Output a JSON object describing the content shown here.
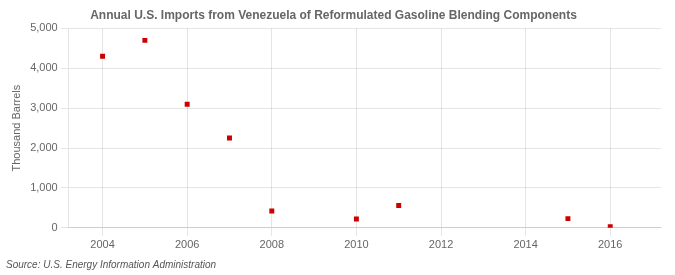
{
  "chart_data": {
    "type": "scatter",
    "title": "Annual U.S. Imports from Venezuela of Reformulated Gasoline Blending Components",
    "ylabel": "Thousand Barrels",
    "annotations": [
      "Source: U.S. Energy Information Administration"
    ],
    "x": [
      2004,
      2005,
      2006,
      2007,
      2008,
      2010,
      2011,
      2015,
      2016
    ],
    "values": [
      4300,
      4700,
      3100,
      2250,
      420,
      220,
      560,
      230,
      30
    ],
    "color": "#cc0000",
    "marker": "square",
    "xlim": [
      2003.2,
      2017.2
    ],
    "xticks": [
      2004,
      2006,
      2008,
      2010,
      2012,
      2014,
      2016
    ],
    "ylim": [
      0,
      5000
    ],
    "yticks": [
      0,
      {
        "value": 1000,
        "label": "1,000"
      },
      {
        "value": 2000,
        "label": "2,000"
      },
      {
        "value": 3000,
        "label": "3,000"
      },
      {
        "value": 4000,
        "label": "4,000"
      },
      {
        "value": 5000,
        "label": "5,000"
      }
    ],
    "grid": true
  }
}
